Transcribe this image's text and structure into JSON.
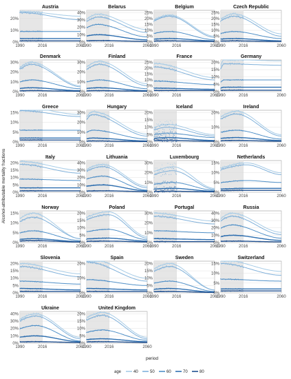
{
  "chart_data": {
    "type": "line",
    "ylabel": "Alcohol-attributable mortality fractions",
    "xlabel": "period",
    "xlim": [
      1990,
      2060
    ],
    "x_ticks": [
      "1990",
      "2016",
      "2060"
    ],
    "observed_end": 2016,
    "legend": {
      "title": "age",
      "placement": "bottom",
      "labels": [
        "40",
        "50",
        "60",
        "70",
        "80"
      ]
    },
    "series_colors": [
      "#a6cbe6",
      "#7fb0da",
      "#4f8fc7",
      "#2e6fb0",
      "#1f4f8f"
    ],
    "panels": [
      {
        "name": "Austria",
        "ymax": 25,
        "yticks": [
          "0%",
          "10%",
          "20%"
        ],
        "peaks": [
          26,
          25,
          9,
          3,
          1
        ],
        "peakyear": 1993,
        "end": [
          22,
          19,
          9,
          3,
          1
        ]
      },
      {
        "name": "Belarus",
        "ymax": 40,
        "yticks": [
          "0%",
          "10%",
          "20%",
          "30%",
          "40%"
        ],
        "peaks": [
          38,
          34,
          24,
          10,
          2
        ],
        "peakyear": 2003,
        "end": [
          17,
          13,
          7,
          3,
          1
        ]
      },
      {
        "name": "Belgium",
        "ymax": 25,
        "yticks": [
          "0%",
          "5%",
          "10%",
          "15%",
          "20%",
          "25%"
        ],
        "peaks": [
          23,
          22,
          9,
          3,
          1
        ],
        "peakyear": 2008,
        "end": [
          5,
          4,
          2,
          1,
          0.5
        ]
      },
      {
        "name": "Czech Republic",
        "ymax": 25,
        "yticks": [
          "0%",
          "5%",
          "10%",
          "15%",
          "20%",
          "25%"
        ],
        "peaks": [
          24,
          22,
          9,
          3,
          1
        ],
        "peakyear": 2005,
        "end": [
          7,
          5,
          3,
          1,
          0.5
        ]
      },
      {
        "name": "Denmark",
        "ymax": 30,
        "yticks": [
          "0%",
          "10%",
          "20%",
          "30%"
        ],
        "peaks": [
          30,
          28,
          12,
          4,
          1
        ],
        "peakyear": 2003,
        "end": [
          6,
          5,
          3,
          1,
          0.5
        ]
      },
      {
        "name": "Finland",
        "ymax": 30,
        "yticks": [
          "0%",
          "10%",
          "20%",
          "30%"
        ],
        "peaks": [
          31,
          28,
          12,
          4,
          1
        ],
        "peakyear": 2005,
        "end": [
          8,
          6,
          3,
          1,
          0.5
        ]
      },
      {
        "name": "France",
        "ymax": 25,
        "yticks": [
          "0%",
          "5%",
          "10%",
          "15%",
          "20%",
          "25%"
        ],
        "peaks": [
          24,
          21,
          9,
          3,
          1
        ],
        "peakyear": 1991,
        "end": [
          12,
          10,
          6,
          2,
          1
        ]
      },
      {
        "name": "Germany",
        "ymax": 20,
        "yticks": [
          "0%",
          "5%",
          "10%",
          "15%",
          "20%"
        ],
        "peaks": [
          22,
          19,
          8,
          3,
          1
        ],
        "peakyear": 1994,
        "end": [
          21,
          18,
          8,
          3,
          1
        ]
      },
      {
        "name": "Greece",
        "ymax": 15,
        "yticks": [
          "0%",
          "5%",
          "10%",
          "15%"
        ],
        "peaks": [
          18,
          16,
          6,
          2,
          1
        ],
        "peakyear": 1991,
        "end": [
          14,
          13,
          6,
          2,
          1
        ]
      },
      {
        "name": "Hungary",
        "ymax": 30,
        "yticks": [
          "0%",
          "10%",
          "20%",
          "30%"
        ],
        "peaks": [
          31,
          28,
          12,
          4,
          1
        ],
        "peakyear": 1997,
        "end": [
          8,
          6,
          3,
          1,
          0.5
        ]
      },
      {
        "name": "Iceland",
        "ymax": 20,
        "yticks": [
          "0%",
          "5%",
          "10%",
          "15%",
          "20%"
        ],
        "peaks": [
          12,
          10,
          6,
          3,
          1
        ],
        "peakyear": 2005,
        "end": [
          5,
          4,
          3,
          1,
          0.5
        ]
      },
      {
        "name": "Ireland",
        "ymax": 20,
        "yticks": [
          "0%",
          "10%",
          "20%"
        ],
        "peaks": [
          21,
          19,
          8,
          3,
          1
        ],
        "peakyear": 2008,
        "end": [
          5,
          4,
          2,
          1,
          0.5
        ]
      },
      {
        "name": "Italy",
        "ymax": 20,
        "yticks": [
          "0%",
          "5%",
          "10%",
          "15%",
          "20%"
        ],
        "peaks": [
          21,
          19,
          9,
          3,
          1
        ],
        "peakyear": 1991,
        "end": [
          15,
          13,
          8,
          3,
          1
        ]
      },
      {
        "name": "Lithuania",
        "ymax": 40,
        "yticks": [
          "0%",
          "10%",
          "20%",
          "30%",
          "40%"
        ],
        "peaks": [
          38,
          35,
          22,
          10,
          2
        ],
        "peakyear": 2008,
        "end": [
          8,
          6,
          3,
          2,
          1
        ]
      },
      {
        "name": "Luxembourg",
        "ymax": 30,
        "yticks": [
          "0%",
          "10%",
          "20%",
          "30%"
        ],
        "peaks": [
          26,
          22,
          10,
          4,
          1
        ],
        "peakyear": 2012,
        "end": [
          4,
          3,
          2,
          1,
          0.5
        ]
      },
      {
        "name": "Netherlands",
        "ymax": 15,
        "yticks": [
          "0%",
          "5%",
          "10%",
          "15%"
        ],
        "peaks": [
          15,
          14,
          6,
          2,
          1
        ],
        "peakyear": 2020,
        "end": [
          10,
          9,
          5,
          2,
          1
        ]
      },
      {
        "name": "Norway",
        "ymax": 15,
        "yticks": [
          "0%",
          "5%",
          "10%",
          "15%"
        ],
        "peaks": [
          15,
          13,
          6,
          2,
          1
        ],
        "peakyear": 2005,
        "end": [
          2,
          2,
          1,
          0.5,
          0.3
        ]
      },
      {
        "name": "Poland",
        "ymax": 20,
        "yticks": [
          "0%",
          "5%",
          "10%",
          "15%",
          "20%"
        ],
        "peaks": [
          21,
          19,
          9,
          3,
          1
        ],
        "peakyear": 2015,
        "end": [
          4,
          3,
          2,
          1,
          0.5
        ]
      },
      {
        "name": "Portugal",
        "ymax": 30,
        "yticks": [
          "0%",
          "10%",
          "20%",
          "30%"
        ],
        "peaks": [
          30,
          27,
          12,
          4,
          1
        ],
        "peakyear": 1991,
        "end": [
          22,
          19,
          10,
          3,
          1
        ]
      },
      {
        "name": "Russia",
        "ymax": 40,
        "yticks": [
          "0%",
          "10%",
          "20%",
          "30%",
          "40%"
        ],
        "peaks": [
          40,
          36,
          24,
          10,
          2
        ],
        "peakyear": 2003,
        "end": [
          14,
          11,
          6,
          3,
          1
        ]
      },
      {
        "name": "Slovenia",
        "ymax": 20,
        "yticks": [
          "0%",
          "5%",
          "10%",
          "15%",
          "20%"
        ],
        "peaks": [
          20,
          18,
          8,
          3,
          1
        ],
        "peakyear": 1991,
        "end": [
          13,
          11,
          6,
          2,
          1
        ]
      },
      {
        "name": "Spain",
        "ymax": 20,
        "yticks": [
          "0%",
          "10%",
          "20%"
        ],
        "peaks": [
          24,
          21,
          9,
          3,
          1
        ],
        "peakyear": 1991,
        "end": [
          10,
          8,
          5,
          2,
          1
        ]
      },
      {
        "name": "Sweden",
        "ymax": 20,
        "yticks": [
          "0%",
          "5%",
          "10%",
          "15%",
          "20%"
        ],
        "peaks": [
          20,
          18,
          8,
          3,
          1
        ],
        "peakyear": 2008,
        "end": [
          2,
          2,
          1,
          0.5,
          0.3
        ]
      },
      {
        "name": "Switzerland",
        "ymax": 15,
        "yticks": [
          "0%",
          "5%",
          "10%",
          "15%"
        ],
        "peaks": [
          17,
          15,
          7,
          2,
          1
        ],
        "peakyear": 1991,
        "end": [
          11,
          9,
          6,
          2,
          1
        ]
      },
      {
        "name": "Ukraine",
        "ymax": 40,
        "yticks": [
          "0%",
          "10%",
          "20%",
          "30%",
          "40%"
        ],
        "peaks": [
          40,
          37,
          24,
          10,
          2
        ],
        "peakyear": 2008,
        "end": [
          8,
          6,
          3,
          2,
          1
        ]
      },
      {
        "name": "United Kingdom",
        "ymax": 20,
        "yticks": [
          "0%",
          "5%",
          "10%",
          "15%",
          "20%"
        ],
        "peaks": [
          21,
          19,
          9,
          3,
          1
        ],
        "peakyear": 2008,
        "end": [
          4,
          3,
          2,
          1,
          0.5
        ]
      }
    ]
  }
}
